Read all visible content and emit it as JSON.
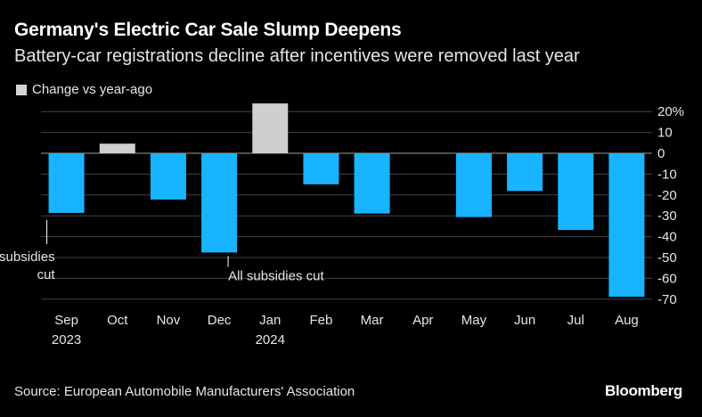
{
  "chart_data": {
    "type": "bar",
    "title": "Germany's Electric Car Sale Slump Deepens",
    "subtitle": "Battery-car registrations decline after incentives were removed last year",
    "legend": [
      {
        "label": "Change vs year-ago",
        "color": "#d3d3d3"
      }
    ],
    "categories": [
      "Sep",
      "Oct",
      "Nov",
      "Dec",
      "Jan",
      "Feb",
      "Mar",
      "Apr",
      "May",
      "Jun",
      "Jul",
      "Aug"
    ],
    "year_labels": {
      "Sep": "2023",
      "Jan": "2024"
    },
    "values": [
      -28.6,
      4.6,
      -22.2,
      -47.6,
      23.9,
      -14.9,
      -28.9,
      0,
      -30.6,
      -18.1,
      -36.8,
      -68.8
    ],
    "colors": {
      "positive": "#cfcfcf",
      "negative": "#19b4ff"
    },
    "ylim": [
      -70,
      25
    ],
    "yticks": [
      20,
      10,
      0,
      -10,
      -20,
      -30,
      -40,
      -50,
      -60,
      -70
    ],
    "ytick_labels": [
      "20%",
      "10",
      "0",
      "-10",
      "-20",
      "-30",
      "-40",
      "-50",
      "-60",
      "-70"
    ],
    "xlabel": "",
    "ylabel": "",
    "annotations": [
      {
        "category": "Sep",
        "lines": [
          "Fleet subsidies",
          "cut"
        ],
        "align": "right"
      },
      {
        "category": "Dec",
        "lines": [
          "All subsidies cut"
        ],
        "align": "left"
      }
    ]
  },
  "footer": {
    "source": "Source: European Automobile Manufacturers' Association",
    "brand": "Bloomberg"
  }
}
